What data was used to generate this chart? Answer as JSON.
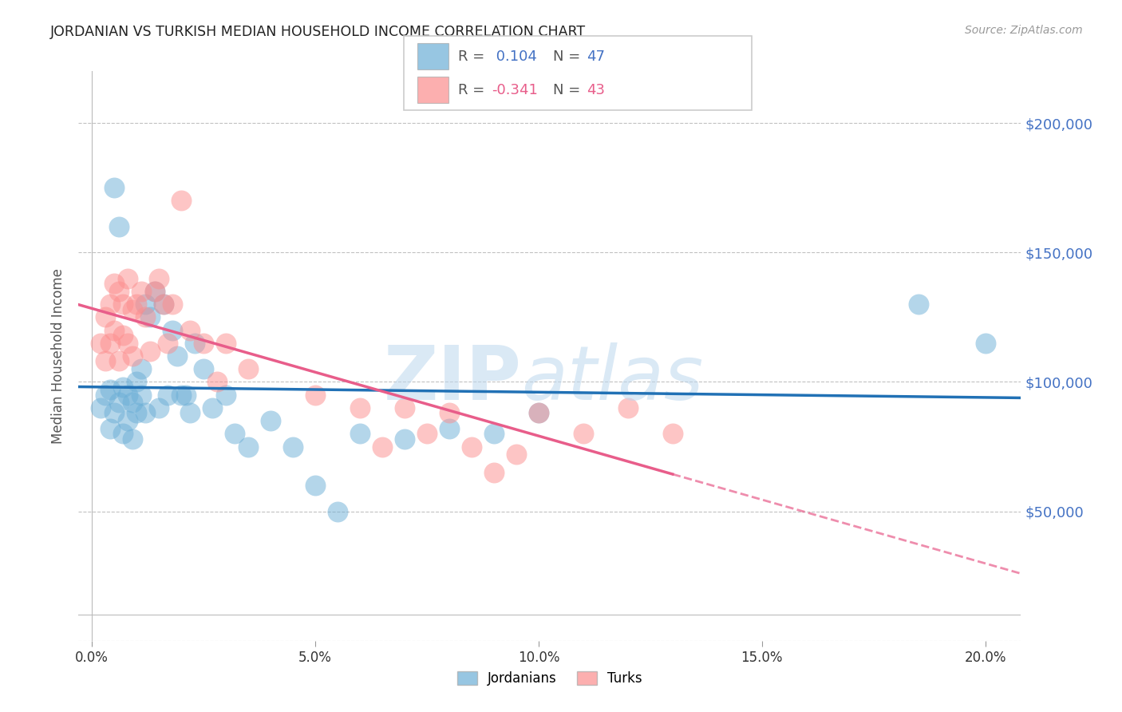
{
  "title": "JORDANIAN VS TURKISH MEDIAN HOUSEHOLD INCOME CORRELATION CHART",
  "source": "Source: ZipAtlas.com",
  "ylabel": "Median Household Income",
  "xlabel_ticks": [
    "0.0%",
    "5.0%",
    "10.0%",
    "15.0%",
    "20.0%"
  ],
  "xlabel_vals": [
    0.0,
    0.05,
    0.1,
    0.15,
    0.2
  ],
  "yticks": [
    0,
    50000,
    100000,
    150000,
    200000
  ],
  "ytick_labels": [
    "",
    "$50,000",
    "$100,000",
    "$150,000",
    "$200,000"
  ],
  "ylim": [
    10000,
    220000
  ],
  "xlim": [
    -0.003,
    0.208
  ],
  "r_jordanian": 0.104,
  "n_jordanian": 47,
  "r_turkish": -0.341,
  "n_turkish": 43,
  "blue_color": "#6BAED6",
  "pink_color": "#FC8D8D",
  "line_blue": "#2171B5",
  "line_pink": "#E85D8A",
  "jordanians_x": [
    0.002,
    0.003,
    0.004,
    0.004,
    0.005,
    0.005,
    0.006,
    0.006,
    0.007,
    0.007,
    0.008,
    0.008,
    0.009,
    0.009,
    0.01,
    0.01,
    0.011,
    0.011,
    0.012,
    0.012,
    0.013,
    0.014,
    0.015,
    0.016,
    0.017,
    0.018,
    0.019,
    0.02,
    0.021,
    0.022,
    0.023,
    0.025,
    0.027,
    0.03,
    0.032,
    0.035,
    0.04,
    0.045,
    0.05,
    0.055,
    0.06,
    0.07,
    0.08,
    0.09,
    0.1,
    0.185,
    0.2
  ],
  "jordanians_y": [
    90000,
    95000,
    82000,
    97000,
    88000,
    175000,
    92000,
    160000,
    98000,
    80000,
    95000,
    85000,
    92000,
    78000,
    100000,
    88000,
    95000,
    105000,
    130000,
    88000,
    125000,
    135000,
    90000,
    130000,
    95000,
    120000,
    110000,
    95000,
    95000,
    88000,
    115000,
    105000,
    90000,
    95000,
    80000,
    75000,
    85000,
    75000,
    60000,
    50000,
    80000,
    78000,
    82000,
    80000,
    88000,
    130000,
    115000
  ],
  "turks_x": [
    0.002,
    0.003,
    0.003,
    0.004,
    0.004,
    0.005,
    0.005,
    0.006,
    0.006,
    0.007,
    0.007,
    0.008,
    0.008,
    0.009,
    0.009,
    0.01,
    0.011,
    0.012,
    0.013,
    0.014,
    0.015,
    0.016,
    0.017,
    0.018,
    0.02,
    0.022,
    0.025,
    0.028,
    0.03,
    0.035,
    0.05,
    0.06,
    0.065,
    0.07,
    0.075,
    0.08,
    0.085,
    0.09,
    0.095,
    0.1,
    0.11,
    0.12,
    0.13
  ],
  "turks_y": [
    115000,
    125000,
    108000,
    130000,
    115000,
    138000,
    120000,
    135000,
    108000,
    130000,
    118000,
    140000,
    115000,
    128000,
    110000,
    130000,
    135000,
    125000,
    112000,
    135000,
    140000,
    130000,
    115000,
    130000,
    170000,
    120000,
    115000,
    100000,
    115000,
    105000,
    95000,
    90000,
    75000,
    90000,
    80000,
    88000,
    75000,
    65000,
    72000,
    88000,
    80000,
    90000,
    80000
  ]
}
